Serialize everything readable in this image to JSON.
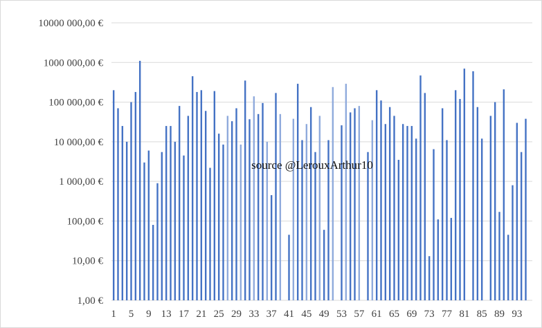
{
  "chart_data": {
    "type": "bar",
    "yscale": "log",
    "ylim": [
      1,
      10000000
    ],
    "grid": true,
    "y_tick_values": [
      1,
      10,
      100,
      1000,
      10000,
      100000,
      1000000,
      10000000
    ],
    "y_tick_labels": [
      "1,00 €",
      "10,00 €",
      "100,00 €",
      "1 000,00 €",
      "10 000,00 €",
      "100 000,00 €",
      "1000 000,00 €",
      "10000 000,00 €"
    ],
    "x_tick_labels": [
      "1",
      "5",
      "9",
      "13",
      "17",
      "21",
      "25",
      "29",
      "33",
      "37",
      "41",
      "45",
      "49",
      "53",
      "57",
      "61",
      "65",
      "69",
      "73",
      "77",
      "81",
      "85",
      "89",
      "93"
    ],
    "x_tick_categories": [
      1,
      5,
      9,
      13,
      17,
      21,
      25,
      29,
      33,
      37,
      41,
      45,
      49,
      53,
      57,
      61,
      65,
      69,
      73,
      77,
      81,
      85,
      89,
      93
    ],
    "categories": [
      1,
      2,
      3,
      4,
      5,
      6,
      7,
      8,
      9,
      10,
      11,
      12,
      13,
      14,
      15,
      16,
      17,
      18,
      19,
      20,
      21,
      22,
      23,
      24,
      25,
      26,
      27,
      28,
      29,
      30,
      31,
      32,
      33,
      34,
      35,
      36,
      37,
      38,
      39,
      40,
      41,
      42,
      43,
      44,
      45,
      46,
      47,
      48,
      49,
      50,
      51,
      52,
      53,
      54,
      55,
      56,
      57,
      58,
      59,
      60,
      61,
      62,
      63,
      64,
      65,
      66,
      67,
      68,
      69,
      70,
      71,
      72,
      73,
      74,
      75,
      76,
      77,
      78,
      79,
      80,
      81,
      82,
      83,
      84,
      85,
      86,
      87,
      88,
      89,
      90,
      91,
      92,
      93,
      94,
      95,
      96
    ],
    "values": [
      200000,
      70000,
      25000,
      10000,
      100000,
      180000,
      1100000,
      3000,
      6000,
      80,
      900,
      5500,
      25000,
      25000,
      10000,
      80000,
      4500,
      45000,
      450000,
      180000,
      200000,
      60000,
      2200,
      190000,
      16000,
      8500,
      45000,
      33000,
      70000,
      8500,
      350000,
      37000,
      140000,
      50000,
      95000,
      10000,
      450,
      170000,
      50000,
      1,
      45,
      38000,
      290000,
      11000,
      28000,
      75000,
      5500,
      45000,
      60,
      11000,
      240000,
      1,
      26000,
      290000,
      55000,
      70000,
      80000,
      1,
      5500,
      35000,
      200000,
      110000,
      28000,
      75000,
      45000,
      3500,
      28000,
      25000,
      25000,
      12000,
      470000,
      170000,
      13,
      6500,
      110,
      70000,
      11000,
      120,
      200000,
      120000,
      700000,
      1,
      600000,
      75000,
      12000,
      1,
      45000,
      100000,
      170,
      210000,
      45,
      800,
      30000,
      5500,
      38000,
      1
    ],
    "series_colors": [
      "#4472c4",
      "#8faadc"
    ],
    "watermark": "source @LerouxArthur10"
  }
}
